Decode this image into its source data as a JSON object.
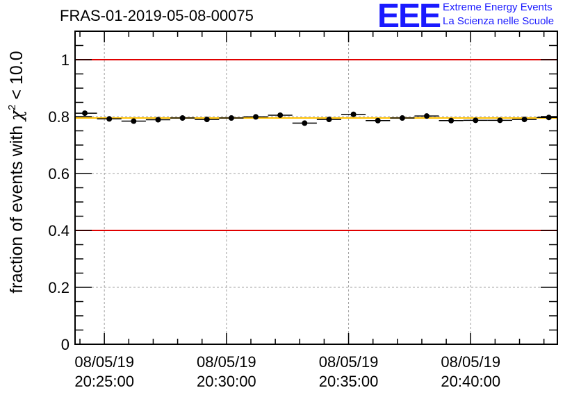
{
  "header": {
    "title": "FRAS-01-2019-05-08-00075",
    "logo_mark": "EEE",
    "logo_line1": "Extreme Energy Events",
    "logo_line2": "La Scienza nelle Scuole"
  },
  "colors": {
    "threshold": "#e00000",
    "fit": "#ffc000",
    "points": "#000000",
    "grid": "#a0a0a0",
    "logo": "#1a1aff"
  },
  "chart_data": {
    "type": "scatter",
    "title": "FRAS-01-2019-05-08-00075",
    "ylabel_prefix": "fraction of events with ",
    "ylabel_symbol": "χ",
    "ylabel_sup": "2",
    "ylabel_suffix": " < 10.0",
    "xlabel": "",
    "ylim": [
      0,
      1.1
    ],
    "yticks": [
      0,
      0.2,
      0.4,
      0.6,
      0.8,
      1
    ],
    "ytick_labels": [
      "0",
      "0.2",
      "0.4",
      "0.6",
      "0.8",
      "1"
    ],
    "xlim_minutes": [
      -0.2,
      19.55
    ],
    "xticks_minutes": [
      1,
      6,
      11,
      16
    ],
    "xtick_labels": [
      [
        "08/05/19",
        "20:25:00"
      ],
      [
        "08/05/19",
        "20:30:00"
      ],
      [
        "08/05/19",
        "20:35:00"
      ],
      [
        "08/05/19",
        "20:40:00"
      ]
    ],
    "grid": true,
    "bin_width_minutes": 1,
    "series": [
      {
        "name": "fraction",
        "x_minutes": [
          0.2,
          1.2,
          2.2,
          3.2,
          4.2,
          5.2,
          6.2,
          7.2,
          8.2,
          9.2,
          10.2,
          11.2,
          12.2,
          13.2,
          14.2,
          15.2,
          16.2,
          17.2,
          18.2,
          19.2
        ],
        "values": [
          0.812,
          0.792,
          0.784,
          0.789,
          0.795,
          0.79,
          0.795,
          0.799,
          0.805,
          0.777,
          0.79,
          0.808,
          0.786,
          0.795,
          0.802,
          0.786,
          0.787,
          0.787,
          0.79,
          0.797
        ]
      }
    ],
    "reference_lines": [
      {
        "name": "upper-threshold",
        "y": 1.0,
        "color": "#e00000"
      },
      {
        "name": "lower-threshold",
        "y": 0.4,
        "color": "#e00000"
      },
      {
        "name": "mean-fit",
        "y": 0.795,
        "color": "#ffc000"
      }
    ]
  }
}
